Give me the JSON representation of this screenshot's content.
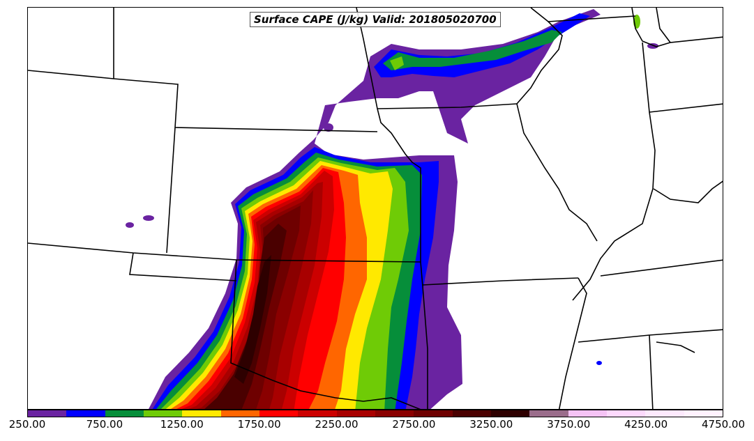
{
  "title": "Surface CAPE (J/kg) Valid: 201805020700",
  "colorbar": {
    "colors": [
      "#6a23a1",
      "#0000ff",
      "#068e3a",
      "#6fcb06",
      "#ffe900",
      "#ff6600",
      "#ff0000",
      "#cc0000",
      "#a80000",
      "#8a0000",
      "#6e0000",
      "#4a0000",
      "#2e0000",
      "#9a6d8b",
      "#f5c3f5",
      "#fdd9fd",
      "#fde9fd",
      "#fff2fe"
    ],
    "tick_labels": [
      "250.00",
      "750.00",
      "1250.00",
      "1750.00",
      "2250.00",
      "2750.00",
      "3250.00",
      "3750.00",
      "4250.00",
      "4750.00"
    ]
  },
  "chart_data": {
    "type": "heatmap",
    "title": "Surface CAPE (J/kg) Valid: 201805020700",
    "levels": [
      250,
      500,
      750,
      1000,
      1250,
      1500,
      1750,
      2000,
      2250,
      2500,
      2750,
      3000,
      3250,
      3500,
      3750,
      4000,
      4250,
      4500,
      4750
    ],
    "colorbar_ticks": [
      250,
      750,
      1250,
      1750,
      2250,
      2750,
      3250,
      3750,
      4250,
      4750
    ]
  }
}
